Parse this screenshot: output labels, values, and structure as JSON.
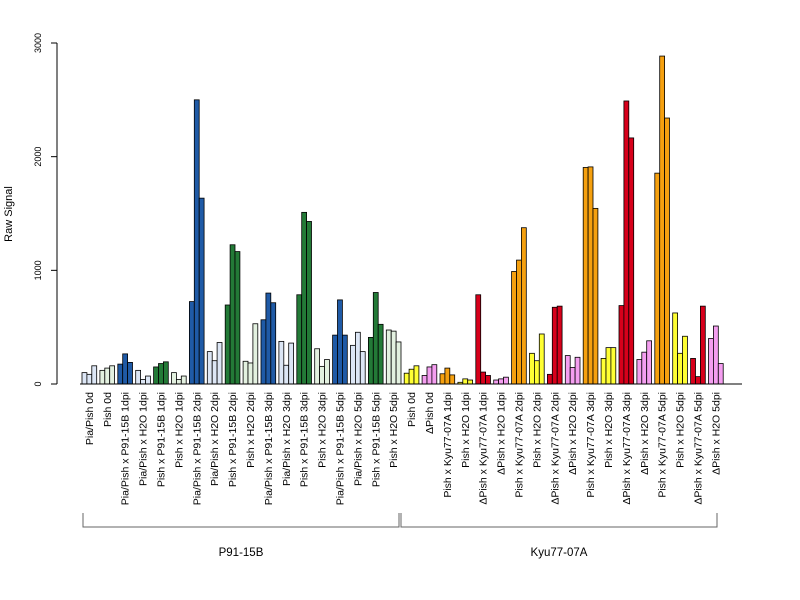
{
  "chart_data": {
    "type": "bar",
    "ylabel": "Raw Signal",
    "ylim": [
      0,
      3000
    ],
    "yticks": [
      0,
      1000,
      2000,
      3000
    ],
    "grid": false,
    "bars_per_category": 3,
    "categories": [
      {
        "label": "Pia/Pish 0d",
        "color": "#dce6f5",
        "values": [
          100,
          85,
          160
        ]
      },
      {
        "label": "Pish 0d",
        "color": "#e3f1e0",
        "values": [
          120,
          140,
          160
        ]
      },
      {
        "label": "Pia/Pish x P91-15B 1dpi",
        "color": "#1f5aa6",
        "values": [
          175,
          265,
          190
        ]
      },
      {
        "label": "Pia/Pish x H2O 1dpi",
        "color": "#dce6f5",
        "values": [
          120,
          40,
          70
        ]
      },
      {
        "label": "Pish x P91-15B 1dpi",
        "color": "#237a37",
        "values": [
          150,
          180,
          195
        ]
      },
      {
        "label": "Pish x H2O 1dpi",
        "color": "#e3f1e0",
        "values": [
          100,
          40,
          70
        ]
      },
      {
        "label": "Pia/Pish x P91-15B 2dpi",
        "color": "#1f5aa6",
        "values": [
          725,
          2500,
          1635
        ]
      },
      {
        "label": "Pia/Pish x H2O 2dpi",
        "color": "#dce6f5",
        "values": [
          285,
          205,
          365
        ]
      },
      {
        "label": "Pish x P91-15B 2dpi",
        "color": "#237a37",
        "values": [
          695,
          1225,
          1165
        ]
      },
      {
        "label": "Pish x H2O 2dpi",
        "color": "#e3f1e0",
        "values": [
          200,
          185,
          530
        ]
      },
      {
        "label": "Pia/Pish x P91-15B 3dpi",
        "color": "#1f5aa6",
        "values": [
          565,
          800,
          715
        ]
      },
      {
        "label": "Pia/Pish x H2O 3dpi",
        "color": "#dce6f5",
        "values": [
          375,
          165,
          360
        ]
      },
      {
        "label": "Pish x P91-15B 3dpi",
        "color": "#237a37",
        "values": [
          785,
          1510,
          1430
        ]
      },
      {
        "label": "Pish x H2O 3dpi",
        "color": "#e3f1e0",
        "values": [
          310,
          155,
          215
        ]
      },
      {
        "label": "Pia/Pish x P91-15B 5dpi",
        "color": "#1f5aa6",
        "values": [
          430,
          740,
          430
        ]
      },
      {
        "label": "Pia/Pish x H2O 5dpi",
        "color": "#dce6f5",
        "values": [
          340,
          455,
          285
        ]
      },
      {
        "label": "Pish x P91-15B 5dpi",
        "color": "#237a37",
        "values": [
          410,
          805,
          525
        ]
      },
      {
        "label": "Pish x H2O 5dpi",
        "color": "#e3f1e0",
        "values": [
          475,
          465,
          370
        ]
      },
      {
        "label": "Pish 0d",
        "color": "#ffff33",
        "values": [
          95,
          130,
          160
        ]
      },
      {
        "label": "ΔPish 0d",
        "color": "#f49ef0",
        "values": [
          75,
          150,
          170
        ]
      },
      {
        "label": "Pish x Kyu77-07A 1dpi",
        "color": "#f5a00f",
        "values": [
          90,
          140,
          80
        ]
      },
      {
        "label": "Pish x H2O 1dpi",
        "color": "#ffff33",
        "values": [
          15,
          45,
          35
        ]
      },
      {
        "label": "ΔPish x Kyu77-07A 1dpi",
        "color": "#d7001b",
        "values": [
          785,
          105,
          75
        ]
      },
      {
        "label": "ΔPish x H2O 1dpi",
        "color": "#f49ef0",
        "values": [
          35,
          45,
          60
        ]
      },
      {
        "label": "Pish x Kyu77-07A 2dpi",
        "color": "#f5a00f",
        "values": [
          990,
          1090,
          1375
        ]
      },
      {
        "label": "Pish x H2O 2dpi",
        "color": "#ffff33",
        "values": [
          270,
          205,
          440
        ]
      },
      {
        "label": "ΔPish x Kyu77-07A 2dpi",
        "color": "#d7001b",
        "values": [
          85,
          675,
          685
        ]
      },
      {
        "label": "ΔPish x H2O 2dpi",
        "color": "#f49ef0",
        "values": [
          250,
          145,
          235
        ]
      },
      {
        "label": "Pish x Kyu77-07A 3dpi",
        "color": "#f5a00f",
        "values": [
          1905,
          1910,
          1545
        ]
      },
      {
        "label": "Pish x H2O 3dpi",
        "color": "#ffff33",
        "values": [
          225,
          320,
          320
        ]
      },
      {
        "label": "ΔPish x Kyu77-07A 3dpi",
        "color": "#d7001b",
        "values": [
          690,
          2490,
          2165
        ]
      },
      {
        "label": "ΔPish x H2O 3dpi",
        "color": "#f49ef0",
        "values": [
          215,
          280,
          380
        ]
      },
      {
        "label": "Pish x Kyu77-07A 5dpi",
        "color": "#f5a00f",
        "values": [
          1855,
          2885,
          2340
        ]
      },
      {
        "label": "Pish x H2O 5dpi",
        "color": "#ffff33",
        "values": [
          625,
          270,
          420
        ]
      },
      {
        "label": "ΔPish x Kyu77-07A 5dpi",
        "color": "#d7001b",
        "values": [
          225,
          65,
          685
        ]
      },
      {
        "label": "ΔPish x H2O 5dpi",
        "color": "#f49ef0",
        "values": [
          400,
          510,
          180
        ]
      }
    ],
    "groups": [
      {
        "name": "P91-15B",
        "from": 0,
        "to": 17
      },
      {
        "name": "Kyu77-07A",
        "from": 18,
        "to": 35
      }
    ]
  }
}
